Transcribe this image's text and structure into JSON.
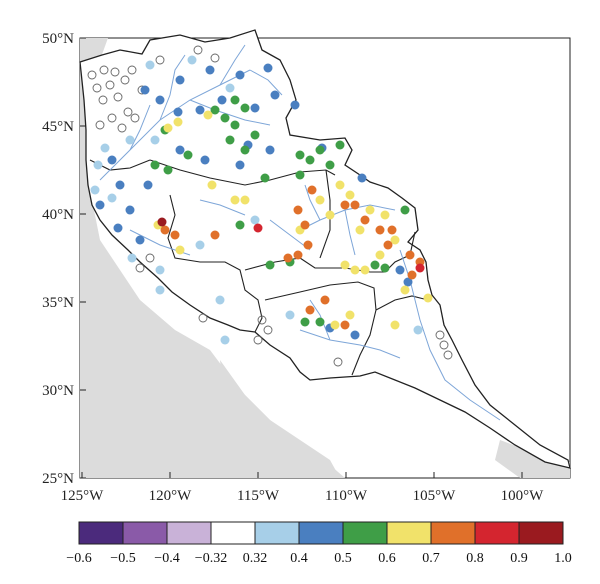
{
  "map": {
    "lat_labels": [
      "50°N",
      "45°N",
      "40°N",
      "35°N",
      "30°N",
      "25°N"
    ],
    "lon_labels": [
      "125°W",
      "120°W",
      "115°W",
      "110°W",
      "105°W",
      "100°W"
    ]
  },
  "colorbar": {
    "tick_labels": [
      "−0.6",
      "−0.5",
      "−0.4",
      "−0.32",
      "0.32",
      "0.4",
      "0.5",
      "0.6",
      "0.7",
      "0.8",
      "0.9",
      "1.0"
    ],
    "colors": [
      "#4b2a7c",
      "#8a5aa8",
      "#c9b2d8",
      "#ffffff",
      "#a7cfe8",
      "#4a7fc0",
      "#3f9e47",
      "#f1e26a",
      "#e0702a",
      "#d4252f",
      "#9a1a1f"
    ]
  },
  "colors": {
    "ocean_gray": "#dcdcdc",
    "river_blue": "#7ea6d8",
    "border": "#222222"
  }
}
